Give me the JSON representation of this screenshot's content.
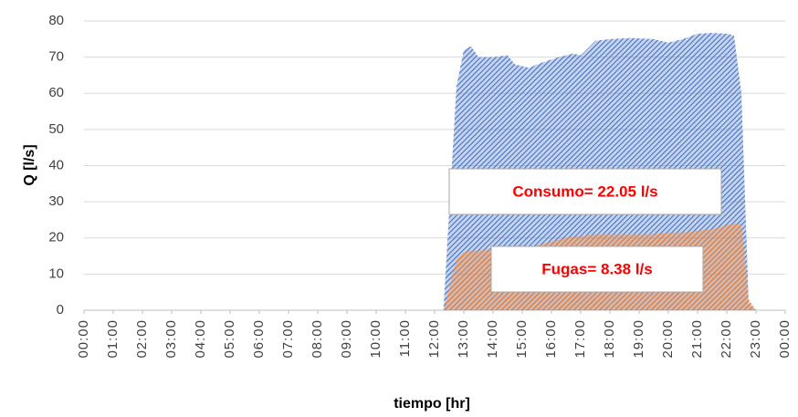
{
  "chart_data": {
    "type": "area",
    "x_label": "tiempo [hr]",
    "y_label": "Q [l/s]",
    "x": [
      12.3,
      12.75,
      13,
      13.25,
      13.5,
      14,
      14.5,
      14.75,
      15.25,
      15.5,
      16.25,
      16.75,
      17,
      17.5,
      18,
      18.75,
      19.5,
      20,
      20.5,
      21,
      21.5,
      22,
      22.25,
      22.5,
      22.75,
      23
    ],
    "series": [
      {
        "name": "Consumo",
        "color": "#4472c4",
        "values": [
          0,
          62,
          72,
          73,
          70,
          70,
          70.5,
          68,
          67,
          68,
          70,
          71,
          70.5,
          74.5,
          75,
          75.3,
          75,
          74,
          75,
          76.5,
          76.7,
          76.5,
          76,
          60,
          2,
          0
        ]
      },
      {
        "name": "Fugas",
        "color": "#ed7d31",
        "values": [
          0,
          14,
          16,
          16.5,
          16.5,
          17,
          17,
          17.5,
          17.5,
          18,
          19.5,
          20.5,
          20.5,
          21,
          21,
          21,
          21,
          21.5,
          21.5,
          22,
          22.5,
          23.5,
          24,
          24,
          3,
          0
        ]
      }
    ],
    "annotations": [
      "Consumo= 22.05 l/s",
      "Fugas= 8.38 l/s"
    ],
    "xlim": [
      0,
      24
    ],
    "xticks": [
      {
        "value": 0,
        "label": "00:00"
      },
      {
        "value": 1,
        "label": "01:00"
      },
      {
        "value": 2,
        "label": "02:00"
      },
      {
        "value": 3,
        "label": "03:00"
      },
      {
        "value": 4,
        "label": "04:00"
      },
      {
        "value": 5,
        "label": "05:00"
      },
      {
        "value": 6,
        "label": "06:00"
      },
      {
        "value": 7,
        "label": "07:00"
      },
      {
        "value": 8,
        "label": "08:00"
      },
      {
        "value": 9,
        "label": "09:00"
      },
      {
        "value": 10,
        "label": "10:00"
      },
      {
        "value": 11,
        "label": "11:00"
      },
      {
        "value": 12,
        "label": "12:00"
      },
      {
        "value": 13,
        "label": "13:00"
      },
      {
        "value": 14,
        "label": "14:00"
      },
      {
        "value": 15,
        "label": "15:00"
      },
      {
        "value": 16,
        "label": "16:00"
      },
      {
        "value": 17,
        "label": "17:00"
      },
      {
        "value": 18,
        "label": "18:00"
      },
      {
        "value": 19,
        "label": "19:00"
      },
      {
        "value": 20,
        "label": "20:00"
      },
      {
        "value": 21,
        "label": "21:00"
      },
      {
        "value": 22,
        "label": "22:00"
      },
      {
        "value": 23,
        "label": "23:00"
      },
      {
        "value": 24,
        "label": "00:00"
      }
    ],
    "ylim": [
      0,
      80
    ],
    "yticks": [
      0,
      10,
      20,
      30,
      40,
      50,
      60,
      70,
      80
    ],
    "grid": true,
    "hatched": true
  }
}
